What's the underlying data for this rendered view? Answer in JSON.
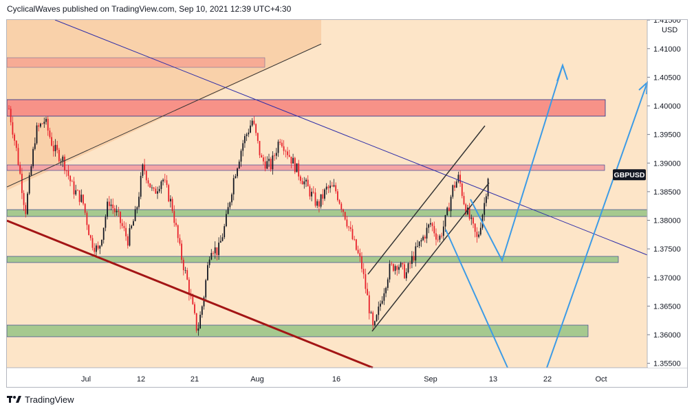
{
  "header": {
    "text": "CyclicalWaves published on TradingView.com, Sep 10, 2021 12:39 UTC+4:30"
  },
  "footer": {
    "brand": "TradingView",
    "logo_icon": "tradingview-logo-icon"
  },
  "chart_data": {
    "type": "candlestick",
    "symbol_label": "GBPUSD",
    "currency": "USD",
    "last_price": 1.3882,
    "y_ticks": [
      "1.41500",
      "1.41000",
      "1.40500",
      "1.40000",
      "1.39500",
      "1.39000",
      "1.38500",
      "1.38000",
      "1.37500",
      "1.37000",
      "1.36500",
      "1.36000",
      "1.35500"
    ],
    "x_ticks": [
      "Jul",
      "12",
      "21",
      "Aug",
      "16",
      "Sep",
      "13",
      "22",
      "Oct"
    ],
    "colors": {
      "background": "#fde5c8",
      "up_candle": "#131722",
      "down_candle": "#e8202a",
      "red_zone": "#f79288",
      "pink_zone": "#f5a5a5",
      "green_zone": "#a6c98f",
      "zone_border": "#1e2f8f",
      "projection": "#3c9be6",
      "channel": "#333333",
      "support_line": "#a31515",
      "resistance_line": "#2c2ca8",
      "label_bg": "#131722"
    },
    "drawing_tools": [
      "price-zones",
      "descending-trendline",
      "support-trendline",
      "rising-channel",
      "projection-paths"
    ]
  }
}
